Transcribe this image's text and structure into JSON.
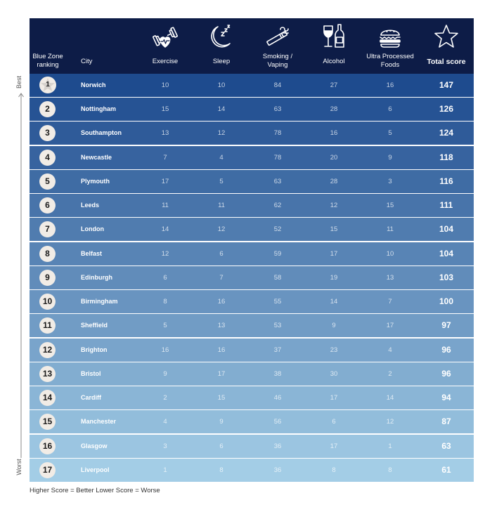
{
  "header": {
    "ranking": "Blue Zone\nranking",
    "city": "City",
    "exercise": "Exercise",
    "sleep": "Sleep",
    "smoking": "Smoking /\nVaping",
    "alcohol": "Alcohol",
    "upf": "Ultra Processed\nFoods",
    "total": "Total score"
  },
  "icons": {
    "exercise": "dumbbell-heart-icon",
    "sleep": "moon-zzz-icon",
    "smoking": "cigarette-icon",
    "alcohol": "wine-glass-bottle-icon",
    "upf": "burger-icon",
    "total": "star-icon"
  },
  "axis_labels": {
    "best": "Best",
    "worst": "Worst"
  },
  "footer": "Higher Score = Better   Lower Score = Worse",
  "colors": {
    "header": "#0d1c47",
    "row_top": "#1e4b8e",
    "row_bottom": "#a3cde6",
    "badge": "#f1ece6"
  },
  "chart_data": {
    "type": "table",
    "columns": [
      "Blue Zone ranking",
      "City",
      "Exercise",
      "Sleep",
      "Smoking / Vaping",
      "Alcohol",
      "Ultra Processed Foods",
      "Total score"
    ],
    "rows": [
      {
        "rank": "1",
        "city": "Norwich",
        "exercise": "10",
        "sleep": "10",
        "smoking": "84",
        "alcohol": "27",
        "upf": "16",
        "total": "147"
      },
      {
        "rank": "2",
        "city": "Nottingham",
        "exercise": "15",
        "sleep": "14",
        "smoking": "63",
        "alcohol": "28",
        "upf": "6",
        "total": "126"
      },
      {
        "rank": "3",
        "city": "Southampton",
        "exercise": "13",
        "sleep": "12",
        "smoking": "78",
        "alcohol": "16",
        "upf": "5",
        "total": "124"
      },
      {
        "rank": "4",
        "city": "Newcastle",
        "exercise": "7",
        "sleep": "4",
        "smoking": "78",
        "alcohol": "20",
        "upf": "9",
        "total": "118"
      },
      {
        "rank": "5",
        "city": "Plymouth",
        "exercise": "17",
        "sleep": "5",
        "smoking": "63",
        "alcohol": "28",
        "upf": "3",
        "total": "116"
      },
      {
        "rank": "6",
        "city": "Leeds",
        "exercise": "11",
        "sleep": "11",
        "smoking": "62",
        "alcohol": "12",
        "upf": "15",
        "total": "111"
      },
      {
        "rank": "7",
        "city": "London",
        "exercise": "14",
        "sleep": "12",
        "smoking": "52",
        "alcohol": "15",
        "upf": "11",
        "total": "104"
      },
      {
        "rank": "8",
        "city": "Belfast",
        "exercise": "12",
        "sleep": "6",
        "smoking": "59",
        "alcohol": "17",
        "upf": "10",
        "total": "104"
      },
      {
        "rank": "9",
        "city": "Edinburgh",
        "exercise": "6",
        "sleep": "7",
        "smoking": "58",
        "alcohol": "19",
        "upf": "13",
        "total": "103"
      },
      {
        "rank": "10",
        "city": "Birmingham",
        "exercise": "8",
        "sleep": "16",
        "smoking": "55",
        "alcohol": "14",
        "upf": "7",
        "total": "100"
      },
      {
        "rank": "11",
        "city": "Sheffield",
        "exercise": "5",
        "sleep": "13",
        "smoking": "53",
        "alcohol": "9",
        "upf": "17",
        "total": "97"
      },
      {
        "rank": "12",
        "city": "Brighton",
        "exercise": "16",
        "sleep": "16",
        "smoking": "37",
        "alcohol": "23",
        "upf": "4",
        "total": "96"
      },
      {
        "rank": "13",
        "city": "Bristol",
        "exercise": "9",
        "sleep": "17",
        "smoking": "38",
        "alcohol": "30",
        "upf": "2",
        "total": "96"
      },
      {
        "rank": "14",
        "city": "Cardiff",
        "exercise": "2",
        "sleep": "15",
        "smoking": "46",
        "alcohol": "17",
        "upf": "14",
        "total": "94"
      },
      {
        "rank": "15",
        "city": "Manchester",
        "exercise": "4",
        "sleep": "9",
        "smoking": "56",
        "alcohol": "6",
        "upf": "12",
        "total": "87"
      },
      {
        "rank": "16",
        "city": "Glasgow",
        "exercise": "3",
        "sleep": "6",
        "smoking": "36",
        "alcohol": "17",
        "upf": "1",
        "total": "63"
      },
      {
        "rank": "17",
        "city": "Liverpool",
        "exercise": "1",
        "sleep": "8",
        "smoking": "36",
        "alcohol": "8",
        "upf": "8",
        "total": "61"
      }
    ]
  }
}
